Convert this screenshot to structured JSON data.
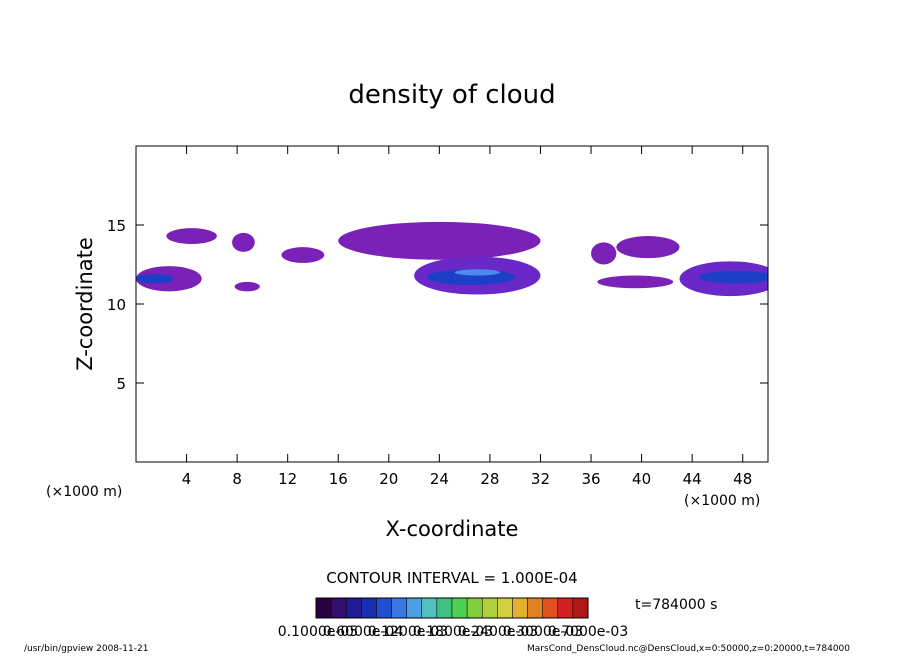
{
  "chart_data": {
    "type": "contour",
    "title": "density of cloud",
    "xlabel": "X-coordinate",
    "ylabel": "Z-coordinate",
    "x_unit_left": "(×1000 m)",
    "x_unit_right": "(×1000 m)",
    "xlim": [
      0,
      50
    ],
    "xticks": [
      4,
      8,
      12,
      16,
      20,
      24,
      28,
      32,
      36,
      40,
      44,
      48
    ],
    "ylim": [
      0,
      20
    ],
    "yticks": [
      5,
      10,
      15
    ],
    "regions": [
      {
        "x": 2.6,
        "z": 11.6,
        "rx": 2.6,
        "rz": 0.8,
        "color": "#7a22b8"
      },
      {
        "x": 1.5,
        "z": 11.6,
        "rx": 1.5,
        "rz": 0.3,
        "color": "#1d3fc8"
      },
      {
        "x": 4.4,
        "z": 14.3,
        "rx": 2,
        "rz": 0.5,
        "color": "#7a22b8"
      },
      {
        "x": 8.5,
        "z": 13.9,
        "rx": 0.9,
        "rz": 0.6,
        "color": "#7a22b8"
      },
      {
        "x": 8.8,
        "z": 11.1,
        "rx": 1,
        "rz": 0.3,
        "color": "#7a22b8"
      },
      {
        "x": 13.2,
        "z": 13.1,
        "rx": 1.7,
        "rz": 0.5,
        "color": "#7a22b8"
      },
      {
        "x": 24,
        "z": 14,
        "rx": 8,
        "rz": 1.2,
        "color": "#7a22b8"
      },
      {
        "x": 27,
        "z": 11.8,
        "rx": 5,
        "rz": 1.2,
        "color": "#6a28c8"
      },
      {
        "x": 26.5,
        "z": 11.7,
        "rx": 3.5,
        "rz": 0.5,
        "color": "#1d3fc8"
      },
      {
        "x": 27,
        "z": 12,
        "rx": 1.8,
        "rz": 0.2,
        "color": "#4a8ae8"
      },
      {
        "x": 37,
        "z": 13.2,
        "rx": 1,
        "rz": 0.7,
        "color": "#7a22b8"
      },
      {
        "x": 39.5,
        "z": 11.4,
        "rx": 3,
        "rz": 0.4,
        "color": "#7a22b8"
      },
      {
        "x": 40.5,
        "z": 13.6,
        "rx": 2.5,
        "rz": 0.7,
        "color": "#7a22b8"
      },
      {
        "x": 47,
        "z": 11.6,
        "rx": 4,
        "rz": 1.1,
        "color": "#6a28c8"
      },
      {
        "x": 47.5,
        "z": 11.7,
        "rx": 3,
        "rz": 0.4,
        "color": "#1d3fc8"
      }
    ],
    "contour_interval": "CONTOUR INTERVAL = 1.000E-04",
    "time": "t=784000 s",
    "colorbar": [
      "#2a0040",
      "#30106a",
      "#201c90",
      "#1a2fb0",
      "#2050d0",
      "#3a78e0",
      "#4aa0e0",
      "#50c0c0",
      "#40c080",
      "#50d050",
      "#80d040",
      "#b0d040",
      "#d0d040",
      "#e0b030",
      "#e08020",
      "#e05020",
      "#d02020",
      "#b01818"
    ],
    "colorbar_labels": [
      "0.1000e-05",
      "0.6000e-04",
      "0.1200e-03",
      "0.1800e-03",
      "0.2400e-03",
      "0.3000e-03",
      "0.7000e-03"
    ],
    "footer_left": "/usr/bin/gpview  2008-11-21",
    "footer_right": "MarsCond_DensCloud.nc@DensCloud,x=0:50000,z=0:20000,t=784000"
  }
}
